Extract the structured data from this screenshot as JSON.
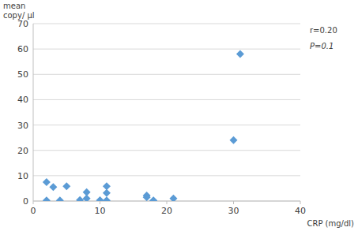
{
  "chart_data": {
    "type": "scatter",
    "x": [
      2,
      2,
      3,
      4,
      5,
      7,
      8,
      8,
      10,
      11,
      11,
      11,
      17,
      17,
      18,
      18,
      18,
      21,
      30,
      31
    ],
    "values": [
      7.5,
      0.2,
      5.5,
      0.2,
      5.8,
      0.4,
      1.0,
      3.5,
      0.3,
      5.8,
      3.2,
      0.2,
      2.2,
      1.5,
      0.2,
      0.1,
      0.1,
      1.0,
      24,
      58
    ],
    "xlim": [
      0,
      40
    ],
    "ylim": [
      0,
      70
    ],
    "xticks": [
      0,
      10,
      20,
      30,
      40
    ],
    "yticks": [
      0,
      10,
      20,
      30,
      40,
      50,
      60,
      70
    ],
    "xlabel": "CRP (mg/dl)",
    "ylabel": [
      "mean",
      "copy/ μl"
    ],
    "annotations": [
      "r=0.20",
      "P=0.1"
    ],
    "color": "#5b9bd5",
    "marker": "diamond",
    "grid": true
  }
}
